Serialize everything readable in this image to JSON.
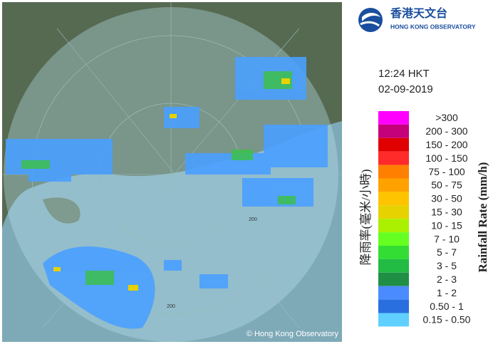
{
  "header": {
    "logo_chinese": "香港天文台",
    "logo_english": "HONG KONG OBSERVATORY"
  },
  "time": "12:24 HKT",
  "date": "02-09-2019",
  "legend": {
    "title_chinese": "降雨率(毫米/小時)",
    "title_english": "Rainfall Rate (mm/h)",
    "items": [
      {
        "label": ">300",
        "color": "#ff00ff"
      },
      {
        "label": "200 - 300",
        "color": "#c4007a"
      },
      {
        "label": "150 - 200",
        "color": "#e00000"
      },
      {
        "label": "100 - 150",
        "color": "#ff2a2a"
      },
      {
        "label": "75 - 100",
        "color": "#ff7f00"
      },
      {
        "label": "50 - 75",
        "color": "#ffa200"
      },
      {
        "label": "30 - 50",
        "color": "#ffc400"
      },
      {
        "label": "15 - 30",
        "color": "#e6d200"
      },
      {
        "label": "10 - 15",
        "color": "#aaf000"
      },
      {
        "label": "7 - 10",
        "color": "#66ff22"
      },
      {
        "label": "5 - 7",
        "color": "#33dd33"
      },
      {
        "label": "3 - 5",
        "color": "#22bb44"
      },
      {
        "label": "2 - 3",
        "color": "#1f8f45"
      },
      {
        "label": "1 - 2",
        "color": "#4a8cff"
      },
      {
        "label": "0.50 - 1",
        "color": "#2a6fe0"
      },
      {
        "label": "0.15 - 0.50",
        "color": "#5fd0ff"
      }
    ]
  },
  "map": {
    "range_labels": [
      "200",
      "200"
    ],
    "copyright": "© Hong Kong Observatory"
  }
}
